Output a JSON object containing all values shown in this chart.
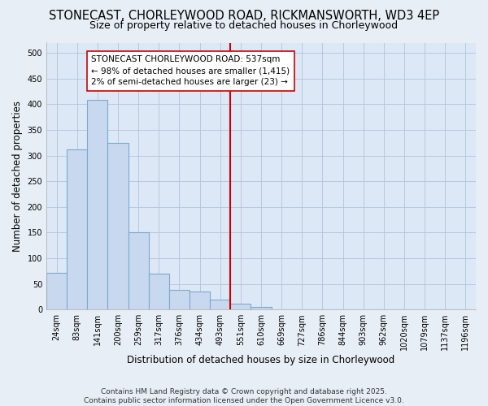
{
  "title": "STONECAST, CHORLEYWOOD ROAD, RICKMANSWORTH, WD3 4EP",
  "subtitle": "Size of property relative to detached houses in Chorleywood",
  "xlabel": "Distribution of detached houses by size in Chorleywood",
  "ylabel": "Number of detached properties",
  "categories": [
    "24sqm",
    "83sqm",
    "141sqm",
    "200sqm",
    "259sqm",
    "317sqm",
    "376sqm",
    "434sqm",
    "493sqm",
    "551sqm",
    "610sqm",
    "669sqm",
    "727sqm",
    "786sqm",
    "844sqm",
    "903sqm",
    "962sqm",
    "1020sqm",
    "1079sqm",
    "1137sqm",
    "1196sqm"
  ],
  "values": [
    72,
    312,
    408,
    325,
    150,
    70,
    38,
    35,
    20,
    12,
    5,
    0,
    0,
    0,
    0,
    0,
    0,
    0,
    0,
    0,
    0
  ],
  "bar_facecolor": "#c8d8ee",
  "bar_edgecolor": "#7aaad0",
  "vline_index": 9,
  "vline_color": "#cc0000",
  "annotation_line1": "STONECAST CHORLEYWOOD ROAD: 537sqm",
  "annotation_line2": "← 98% of detached houses are smaller (1,415)",
  "annotation_line3": "2% of semi-detached houses are larger (23) →",
  "ylim": [
    0,
    520
  ],
  "yticks": [
    0,
    50,
    100,
    150,
    200,
    250,
    300,
    350,
    400,
    450,
    500
  ],
  "bg_color": "#e8eef5",
  "plot_bg_color": "#dce8f5",
  "grid_color": "#b0c4de",
  "title_fontsize": 10.5,
  "subtitle_fontsize": 9,
  "axis_label_fontsize": 8.5,
  "tick_fontsize": 7,
  "annotation_fontsize": 7.5,
  "footer_fontsize": 6.5,
  "footer_line1": "Contains HM Land Registry data © Crown copyright and database right 2025.",
  "footer_line2": "Contains public sector information licensed under the Open Government Licence v3.0."
}
